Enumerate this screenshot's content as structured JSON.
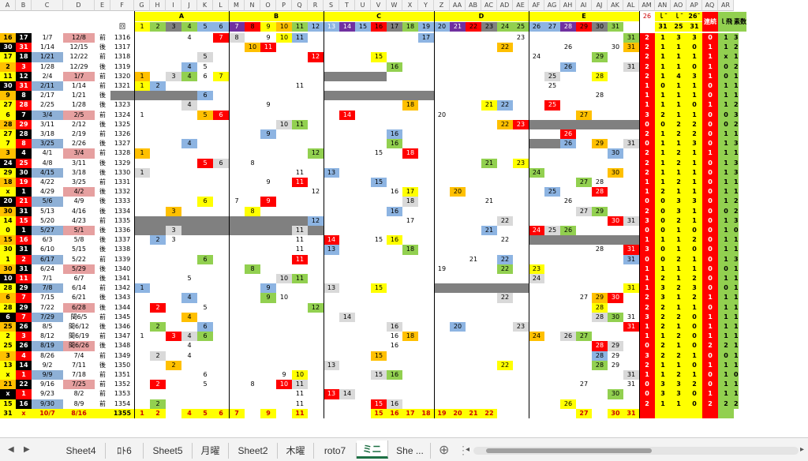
{
  "columns": [
    "",
    "A",
    "B",
    "C",
    "D",
    "E",
    "F",
    "G",
    "H",
    "I",
    "J",
    "K",
    "L",
    "M",
    "N",
    "O",
    "P",
    "Q",
    "R",
    "S",
    "T",
    "U",
    "V",
    "W",
    "X",
    "Y",
    "Z",
    "AA",
    "AB",
    "AC",
    "AD",
    "AE",
    "AF",
    "AG",
    "AH",
    "AI",
    "AJ",
    "AK",
    "AL",
    "AM",
    "AN",
    "AO",
    "AP",
    "AQ",
    "AR"
  ],
  "groups": [
    "A",
    "B",
    "C",
    "D",
    "E"
  ],
  "header_row": [
    "回",
    "1",
    "2",
    "3",
    "4",
    "5",
    "6",
    "7",
    "8",
    "9",
    "10",
    "11",
    "12",
    "13",
    "14",
    "15",
    "16",
    "17",
    "18",
    "19",
    "20",
    "21",
    "22",
    "23",
    "24",
    "25",
    "26",
    "27",
    "28",
    "29",
    "30",
    "31"
  ],
  "right_header": {
    "al": "26",
    "am": "ｌ¯",
    "an": "ｌ¯",
    "ao": "26¯",
    "ap": "連続",
    "aq": "ｌ飛",
    "ar": "素数",
    "am2": "31",
    "an2": "25",
    "ao2": "31"
  },
  "rows": [
    [
      "16",
      "17",
      "1/7",
      "12/8",
      "前",
      "1316"
    ],
    [
      "30",
      "31",
      "1/14",
      "12/15",
      "後",
      "1317"
    ],
    [
      "17",
      "18",
      "1/21",
      "12/22",
      "前",
      "1318"
    ],
    [
      "2",
      "3",
      "1/28",
      "12/29",
      "後",
      "1319"
    ],
    [
      "11",
      "12",
      "2/4",
      "1/7",
      "前",
      "1320"
    ],
    [
      "30",
      "31",
      "2/11",
      "1/14",
      "前",
      "1321"
    ],
    [
      "9",
      "8",
      "2/17",
      "1/21",
      "後",
      "1322"
    ],
    [
      "27",
      "28",
      "2/25",
      "1/28",
      "後",
      "1323"
    ],
    [
      "6",
      "7",
      "3/4",
      "2/5",
      "前",
      "1324"
    ],
    [
      "28",
      "29",
      "3/11",
      "2/12",
      "後",
      "1325"
    ],
    [
      "27",
      "28",
      "3/18",
      "2/19",
      "前",
      "1326"
    ],
    [
      "7",
      "8",
      "3/25",
      "2/26",
      "後",
      "1327"
    ],
    [
      "3",
      "4",
      "4/1",
      "3/4",
      "前",
      "1328"
    ],
    [
      "24",
      "25",
      "4/8",
      "3/11",
      "後",
      "1329"
    ],
    [
      "29",
      "30",
      "4/15",
      "3/18",
      "後",
      "1330"
    ],
    [
      "18",
      "19",
      "4/22",
      "3/25",
      "前",
      "1331"
    ],
    [
      "x",
      "1",
      "4/29",
      "4/2",
      "後",
      "1332"
    ],
    [
      "20",
      "21",
      "5/6",
      "4/9",
      "後",
      "1333"
    ],
    [
      "30",
      "31",
      "5/13",
      "4/16",
      "後",
      "1334"
    ],
    [
      "14",
      "15",
      "5/20",
      "4/23",
      "前",
      "1335"
    ],
    [
      "0",
      "1",
      "5/27",
      "5/1",
      "後",
      "1336"
    ],
    [
      "15",
      "16",
      "6/3",
      "5/8",
      "後",
      "1337"
    ],
    [
      "30",
      "31",
      "6/10",
      "5/15",
      "後",
      "1338"
    ],
    [
      "1",
      "2",
      "6/17",
      "5/22",
      "前",
      "1339"
    ],
    [
      "30",
      "31",
      "6/24",
      "5/29",
      "後",
      "1340"
    ],
    [
      "10",
      "11",
      "7/1",
      "6/7",
      "後",
      "1341"
    ],
    [
      "28",
      "29",
      "7/8",
      "6/14",
      "前",
      "1342"
    ],
    [
      "6",
      "7",
      "7/15",
      "6/21",
      "後",
      "1343"
    ],
    [
      "28",
      "29",
      "7/22",
      "6/28",
      "後",
      "1344"
    ],
    [
      "6",
      "7",
      "7/29",
      "閏6/5",
      "前",
      "1345"
    ],
    [
      "25",
      "26",
      "8/5",
      "閏6/12",
      "後",
      "1346"
    ],
    [
      "2",
      "3",
      "8/12",
      "閏6/19",
      "前",
      "1347"
    ],
    [
      "25",
      "26",
      "8/19",
      "閏6/26",
      "後",
      "1348"
    ],
    [
      "3",
      "4",
      "8/26",
      "7/4",
      "前",
      "1349"
    ],
    [
      "13",
      "14",
      "9/2",
      "7/11",
      "後",
      "1350"
    ],
    [
      "x",
      "1",
      "9/9",
      "7/18",
      "前",
      "1351"
    ],
    [
      "21",
      "22",
      "9/16",
      "7/25",
      "前",
      "1352"
    ],
    [
      "x",
      "1",
      "9/23",
      "8/2",
      "前",
      "1353"
    ],
    [
      "15",
      "16",
      "9/30",
      "8/9",
      "前",
      "1354"
    ],
    [
      "31",
      "x",
      "10/7",
      "8/16",
      "",
      "1355"
    ]
  ],
  "cells": [
    [
      0,
      10,
      "4"
    ],
    [
      0,
      12,
      "7"
    ],
    [
      0,
      13,
      "8"
    ],
    [
      0,
      15,
      "9"
    ],
    [
      0,
      16,
      "10"
    ],
    [
      0,
      17,
      "11"
    ],
    [
      0,
      25,
      "17"
    ],
    [
      0,
      31,
      "23"
    ],
    [
      0,
      38,
      "31"
    ],
    [
      1,
      14,
      "10"
    ],
    [
      1,
      15,
      "11"
    ],
    [
      1,
      30,
      "22"
    ],
    [
      1,
      34,
      "26"
    ],
    [
      1,
      37,
      "30"
    ],
    [
      1,
      38,
      "31"
    ],
    [
      2,
      11,
      "5"
    ],
    [
      2,
      18,
      "12"
    ],
    [
      2,
      22,
      "15"
    ],
    [
      2,
      32,
      "24"
    ],
    [
      2,
      36,
      "29"
    ],
    [
      3,
      10,
      "4"
    ],
    [
      3,
      11,
      "5"
    ],
    [
      3,
      23,
      "16"
    ],
    [
      3,
      34,
      "26"
    ],
    [
      3,
      38,
      "31"
    ],
    [
      4,
      7,
      "1"
    ],
    [
      4,
      9,
      "3"
    ],
    [
      4,
      10,
      "4"
    ],
    [
      4,
      11,
      "6"
    ],
    [
      4,
      12,
      "7"
    ],
    [
      4,
      33,
      "25"
    ],
    [
      4,
      36,
      "28"
    ],
    [
      5,
      7,
      "1"
    ],
    [
      5,
      8,
      "2"
    ],
    [
      5,
      17,
      "11"
    ],
    [
      5,
      33,
      "25"
    ],
    [
      6,
      11,
      "6"
    ],
    [
      6,
      36,
      "28"
    ],
    [
      7,
      10,
      "4"
    ],
    [
      7,
      15,
      "9"
    ],
    [
      7,
      24,
      "18"
    ],
    [
      7,
      29,
      "21"
    ],
    [
      7,
      30,
      "22"
    ],
    [
      7,
      33,
      "25"
    ],
    [
      8,
      7,
      "1"
    ],
    [
      8,
      11,
      "5"
    ],
    [
      8,
      12,
      "6"
    ],
    [
      8,
      20,
      "14"
    ],
    [
      8,
      26,
      "20"
    ],
    [
      8,
      35,
      "27"
    ],
    [
      9,
      16,
      "10"
    ],
    [
      9,
      17,
      "11"
    ],
    [
      9,
      30,
      "22"
    ],
    [
      9,
      31,
      "23"
    ],
    [
      10,
      15,
      "9"
    ],
    [
      10,
      23,
      "16"
    ],
    [
      10,
      34,
      "26"
    ],
    [
      11,
      10,
      "4"
    ],
    [
      11,
      23,
      "16"
    ],
    [
      11,
      34,
      "26"
    ],
    [
      11,
      36,
      "29"
    ],
    [
      11,
      38,
      "31"
    ],
    [
      12,
      7,
      "1"
    ],
    [
      12,
      18,
      "12"
    ],
    [
      12,
      22,
      "15"
    ],
    [
      12,
      24,
      "18"
    ],
    [
      12,
      37,
      "30"
    ],
    [
      13,
      11,
      "5"
    ],
    [
      13,
      12,
      "6"
    ],
    [
      13,
      14,
      "8"
    ],
    [
      13,
      29,
      "21"
    ],
    [
      13,
      31,
      "23"
    ],
    [
      14,
      7,
      "1"
    ],
    [
      14,
      17,
      "11"
    ],
    [
      14,
      19,
      "13"
    ],
    [
      14,
      32,
      "24"
    ],
    [
      14,
      37,
      "30"
    ],
    [
      15,
      15,
      "9"
    ],
    [
      15,
      17,
      "11"
    ],
    [
      15,
      22,
      "15"
    ],
    [
      15,
      35,
      "27"
    ],
    [
      15,
      36,
      "28"
    ],
    [
      16,
      18,
      "12"
    ],
    [
      16,
      23,
      "16"
    ],
    [
      16,
      24,
      "17"
    ],
    [
      16,
      27,
      "20"
    ],
    [
      16,
      33,
      "25"
    ],
    [
      16,
      36,
      "28"
    ],
    [
      17,
      11,
      "6"
    ],
    [
      17,
      13,
      "7"
    ],
    [
      17,
      15,
      "9"
    ],
    [
      17,
      24,
      "18"
    ],
    [
      17,
      29,
      "21"
    ],
    [
      17,
      34,
      "26"
    ],
    [
      18,
      9,
      "3"
    ],
    [
      18,
      14,
      "8"
    ],
    [
      18,
      23,
      "16"
    ],
    [
      18,
      35,
      "27"
    ],
    [
      18,
      36,
      "29"
    ],
    [
      19,
      18,
      "12"
    ],
    [
      19,
      24,
      "17"
    ],
    [
      19,
      30,
      "22"
    ],
    [
      19,
      37,
      "30"
    ],
    [
      19,
      38,
      "31"
    ],
    [
      20,
      9,
      "3"
    ],
    [
      20,
      17,
      "11"
    ],
    [
      20,
      29,
      "20"
    ],
    [
      20,
      29,
      "21"
    ],
    [
      20,
      32,
      "24"
    ],
    [
      20,
      33,
      "25"
    ],
    [
      20,
      34,
      "26"
    ],
    [
      21,
      8,
      "2"
    ],
    [
      21,
      9,
      "3"
    ],
    [
      21,
      17,
      "11"
    ],
    [
      21,
      19,
      "14"
    ],
    [
      21,
      22,
      "15"
    ],
    [
      21,
      23,
      "16"
    ],
    [
      21,
      30,
      "22"
    ],
    [
      22,
      17,
      "11"
    ],
    [
      22,
      19,
      "13"
    ],
    [
      22,
      24,
      "18"
    ],
    [
      22,
      36,
      "28"
    ],
    [
      22,
      38,
      "31"
    ],
    [
      23,
      11,
      "6"
    ],
    [
      23,
      17,
      "11"
    ],
    [
      23,
      28,
      "21"
    ],
    [
      23,
      30,
      "22"
    ],
    [
      23,
      38,
      "31"
    ],
    [
      24,
      14,
      "8"
    ],
    [
      24,
      26,
      "19"
    ],
    [
      24,
      30,
      "22"
    ],
    [
      24,
      32,
      "23"
    ],
    [
      25,
      10,
      "5"
    ],
    [
      25,
      16,
      "10"
    ],
    [
      25,
      17,
      "11"
    ],
    [
      25,
      32,
      "24"
    ],
    [
      26,
      7,
      "1"
    ],
    [
      26,
      15,
      "9"
    ],
    [
      26,
      19,
      "13"
    ],
    [
      26,
      22,
      "15"
    ],
    [
      26,
      38,
      "31"
    ],
    [
      27,
      10,
      "4"
    ],
    [
      27,
      15,
      "9"
    ],
    [
      27,
      16,
      "10"
    ],
    [
      27,
      30,
      "22"
    ],
    [
      27,
      35,
      "27"
    ],
    [
      27,
      36,
      "29"
    ],
    [
      27,
      37,
      "30"
    ],
    [
      28,
      8,
      "2"
    ],
    [
      28,
      11,
      "5"
    ],
    [
      28,
      18,
      "12"
    ],
    [
      28,
      36,
      "28"
    ],
    [
      29,
      10,
      "4"
    ],
    [
      29,
      20,
      "14"
    ],
    [
      29,
      36,
      "28"
    ],
    [
      29,
      37,
      "30"
    ],
    [
      29,
      38,
      "31"
    ],
    [
      30,
      8,
      "2"
    ],
    [
      30,
      11,
      "6"
    ],
    [
      30,
      23,
      "16"
    ],
    [
      30,
      27,
      "20"
    ],
    [
      30,
      31,
      "23"
    ],
    [
      30,
      38,
      "31"
    ],
    [
      31,
      7,
      "1"
    ],
    [
      31,
      9,
      "3"
    ],
    [
      31,
      10,
      "4"
    ],
    [
      31,
      11,
      "6"
    ],
    [
      31,
      23,
      "16"
    ],
    [
      31,
      24,
      "18"
    ],
    [
      31,
      32,
      "24"
    ],
    [
      31,
      34,
      "26"
    ],
    [
      31,
      35,
      "27"
    ],
    [
      32,
      10,
      "4"
    ],
    [
      32,
      23,
      "16"
    ],
    [
      32,
      36,
      "28"
    ],
    [
      32,
      37,
      "29"
    ],
    [
      33,
      8,
      "2"
    ],
    [
      33,
      10,
      "4"
    ],
    [
      33,
      22,
      "15"
    ],
    [
      33,
      36,
      "28"
    ],
    [
      33,
      37,
      "29"
    ],
    [
      34,
      9,
      "2"
    ],
    [
      34,
      19,
      "13"
    ],
    [
      34,
      30,
      "22"
    ],
    [
      34,
      36,
      "28"
    ],
    [
      34,
      37,
      "29"
    ],
    [
      35,
      11,
      "6"
    ],
    [
      35,
      16,
      "9"
    ],
    [
      35,
      17,
      "10"
    ],
    [
      35,
      22,
      "15"
    ],
    [
      35,
      23,
      "16"
    ],
    [
      35,
      38,
      "31"
    ],
    [
      36,
      8,
      "2"
    ],
    [
      36,
      11,
      "5"
    ],
    [
      36,
      14,
      "8"
    ],
    [
      36,
      16,
      "10"
    ],
    [
      36,
      17,
      "11"
    ],
    [
      36,
      35,
      "27"
    ],
    [
      36,
      38,
      "31"
    ],
    [
      37,
      17,
      "11"
    ],
    [
      37,
      19,
      "13"
    ],
    [
      37,
      20,
      "14"
    ],
    [
      37,
      37,
      "30"
    ],
    [
      38,
      8,
      "2"
    ],
    [
      38,
      17,
      "11"
    ],
    [
      38,
      22,
      "15"
    ],
    [
      38,
      23,
      "16"
    ],
    [
      38,
      34,
      "26"
    ],
    [
      39,
      7,
      "1"
    ],
    [
      39,
      8,
      "2"
    ],
    [
      39,
      10,
      "4"
    ],
    [
      39,
      11,
      "5"
    ],
    [
      39,
      12,
      "6"
    ],
    [
      39,
      13,
      "7"
    ],
    [
      39,
      15,
      "9"
    ],
    [
      39,
      17,
      "11"
    ],
    [
      39,
      22,
      "15"
    ],
    [
      39,
      23,
      "16"
    ],
    [
      39,
      24,
      "17"
    ],
    [
      39,
      25,
      "18"
    ],
    [
      39,
      26,
      "19"
    ],
    [
      39,
      27,
      "20"
    ],
    [
      39,
      28,
      "21"
    ],
    [
      39,
      29,
      "22"
    ],
    [
      39,
      35,
      "27"
    ],
    [
      39,
      37,
      "30"
    ],
    [
      39,
      38,
      "31"
    ]
  ],
  "right_values": [
    [
      "2",
      "1",
      "3",
      "3",
      "0",
      "1",
      "3"
    ],
    [
      "2",
      "1",
      "1",
      "0",
      "1",
      "1",
      "2"
    ],
    [
      "2",
      "1",
      "1",
      "1",
      "1",
      "x",
      "1"
    ],
    [
      "2",
      "1",
      "1",
      "0",
      "1",
      "0",
      "2"
    ],
    [
      "2",
      "1",
      "4",
      "3",
      "1",
      "0",
      "1"
    ],
    [
      "1",
      "0",
      "1",
      "1",
      "0",
      "1",
      "1"
    ],
    [
      "1",
      "1",
      "1",
      "1",
      "0",
      "1",
      "1"
    ],
    [
      "1",
      "1",
      "1",
      "0",
      "1",
      "1",
      "2"
    ],
    [
      "3",
      "2",
      "1",
      "1",
      "0",
      "0",
      "3"
    ],
    [
      "0",
      "0",
      "2",
      "2",
      "0",
      "0",
      "2"
    ],
    [
      "2",
      "1",
      "2",
      "2",
      "0",
      "1",
      "1"
    ],
    [
      "0",
      "1",
      "1",
      "3",
      "0",
      "1",
      "3"
    ],
    [
      "2",
      "1",
      "2",
      "1",
      "1",
      "1",
      "1"
    ],
    [
      "2",
      "1",
      "2",
      "1",
      "0",
      "1",
      "3"
    ],
    [
      "2",
      "1",
      "1",
      "1",
      "0",
      "1",
      "3"
    ],
    [
      "1",
      "1",
      "2",
      "1",
      "0",
      "1",
      "1"
    ],
    [
      "1",
      "2",
      "1",
      "1",
      "0",
      "1",
      "1"
    ],
    [
      "0",
      "0",
      "3",
      "3",
      "0",
      "1",
      "2"
    ],
    [
      "2",
      "0",
      "3",
      "1",
      "0",
      "0",
      "2"
    ],
    [
      "3",
      "0",
      "2",
      "1",
      "0",
      "1",
      "3"
    ],
    [
      "0",
      "0",
      "1",
      "0",
      "0",
      "1",
      "0"
    ],
    [
      "1",
      "1",
      "1",
      "2",
      "0",
      "1",
      "1"
    ],
    [
      "3",
      "0",
      "1",
      "0",
      "0",
      "1",
      "1"
    ],
    [
      "0",
      "0",
      "2",
      "1",
      "0",
      "1",
      "3"
    ],
    [
      "1",
      "1",
      "1",
      "1",
      "0",
      "0",
      "1"
    ],
    [
      "1",
      "2",
      "1",
      "2",
      "0",
      "1",
      "1"
    ],
    [
      "1",
      "3",
      "2",
      "3",
      "0",
      "0",
      "1"
    ],
    [
      "2",
      "3",
      "1",
      "2",
      "1",
      "1",
      "1"
    ],
    [
      "2",
      "2",
      "1",
      "1",
      "0",
      "1",
      "1"
    ],
    [
      "3",
      "2",
      "2",
      "0",
      "1",
      "1",
      "1"
    ],
    [
      "1",
      "2",
      "1",
      "0",
      "1",
      "1",
      "1"
    ],
    [
      "1",
      "1",
      "2",
      "0",
      "1",
      "1",
      "1"
    ],
    [
      "0",
      "2",
      "1",
      "0",
      "2",
      "2",
      "1"
    ],
    [
      "3",
      "2",
      "2",
      "1",
      "0",
      "0",
      "1"
    ],
    [
      "2",
      "1",
      "1",
      "0",
      "1",
      "1",
      "1"
    ],
    [
      "1",
      "1",
      "2",
      "1",
      "0",
      "1",
      "0"
    ],
    [
      "0",
      "3",
      "3",
      "2",
      "0",
      "1",
      "1"
    ],
    [
      "0",
      "3",
      "3",
      "0",
      "1",
      "1",
      "1"
    ],
    [
      "2",
      "1",
      "1",
      "0",
      "2",
      "2",
      "2"
    ],
    [
      "",
      "",
      "",
      "",
      "",
      "",
      ""
    ]
  ],
  "tabs": [
    "Sheet4",
    "ﾛﾄ6",
    "Sheet5",
    "月曜",
    "Sheet2",
    "木曜",
    "roto7",
    "ミニ",
    "She ..."
  ],
  "active_tab": "ミニ",
  "colors": {
    "red": "#ff0000",
    "yellow": "#ffff00",
    "orange": "#ffc000",
    "green": "#92d050",
    "blue": "#8db4e2",
    "purple": "#7030a0",
    "gray": "#808080",
    "lightgray": "#d9d9d9",
    "black": "#000000",
    "salmon": "#e6a0a0",
    "teal": "#9bbb59",
    "darkred": "#c00000"
  }
}
